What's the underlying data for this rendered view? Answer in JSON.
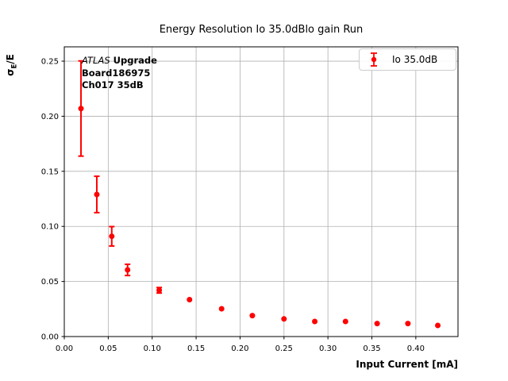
{
  "chart_data": {
    "type": "scatter",
    "title": "Energy Resolution Io 35.0dBlo gain Run",
    "xlabel": "Input Current [mA]",
    "ylabel_parts": {
      "pre": "σ",
      "sub": "E",
      "post": "/E"
    },
    "xlim": [
      0,
      0.448
    ],
    "ylim": [
      0,
      0.263
    ],
    "grid": true,
    "grid_color": "#b0b0b0",
    "frame_color": "#000000",
    "series_color": "#ff0000",
    "xtick_values": [
      0.0,
      0.05,
      0.1,
      0.15,
      0.2,
      0.25,
      0.3,
      0.35,
      0.4
    ],
    "xtick_labels": [
      "0.00",
      "0.05",
      "0.10",
      "0.15",
      "0.20",
      "0.25",
      "0.30",
      "0.35",
      "0.40"
    ],
    "ytick_values": [
      0.0,
      0.05,
      0.1,
      0.15,
      0.2,
      0.25
    ],
    "ytick_labels": [
      "0.00",
      "0.05",
      "0.10",
      "0.15",
      "0.20",
      "0.25"
    ],
    "series": [
      {
        "name": "Io 35.0dB",
        "x": [
          0.019,
          0.037,
          0.054,
          0.072,
          0.108,
          0.1425,
          0.179,
          0.214,
          0.25,
          0.285,
          0.32,
          0.356,
          0.391,
          0.425
        ],
        "y": [
          0.207,
          0.129,
          0.091,
          0.0605,
          0.042,
          0.0335,
          0.0252,
          0.019,
          0.016,
          0.0137,
          0.0137,
          0.0118,
          0.0118,
          0.0101
        ],
        "yerr": [
          0.0432,
          0.0165,
          0.0088,
          0.0051,
          0.0025,
          0,
          0,
          0,
          0,
          0,
          0,
          0,
          0,
          0
        ]
      }
    ],
    "legend_position": "upper right"
  },
  "legend": {
    "label": "Io 35.0dB"
  },
  "annotation": {
    "line1_italic": "ATLAS",
    "line1_bold": "Upgrade",
    "line2": "Board186975",
    "line3": "Ch017 35dB"
  }
}
